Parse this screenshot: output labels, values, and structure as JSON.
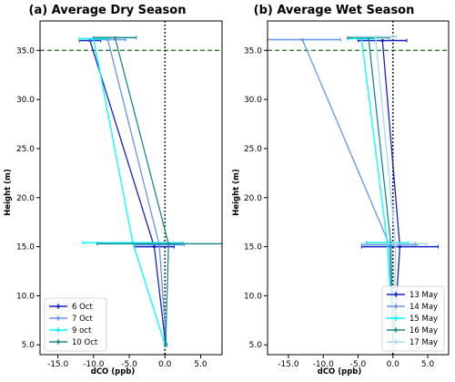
{
  "chart_data": [
    {
      "type": "line",
      "title": "(a)  Average Dry Season",
      "xlabel": "dCO (ppb)",
      "ylabel": "Height (m)",
      "xlim": [
        -17.5,
        8.0
      ],
      "ylim": [
        4.0,
        38.0
      ],
      "xticks": [
        -15,
        -10,
        -5,
        0,
        5
      ],
      "xtick_labels": [
        "-15.0",
        "-10.0",
        "-5.0",
        "0.0",
        "5.0"
      ],
      "yticks": [
        5,
        10,
        15,
        20,
        25,
        30,
        35
      ],
      "ytick_labels": [
        "5.0",
        "10.0",
        "15.0",
        "20.0",
        "25.0",
        "30.0",
        "35.0"
      ],
      "hline": {
        "y": 35,
        "color": "#2e7d32",
        "style": "dashed"
      },
      "vline": {
        "x": 0,
        "color": "#000000",
        "style": "dotted"
      },
      "legend_position": "lower-left",
      "series": [
        {
          "name": "6 Oct",
          "color": "#1420c8",
          "x": [
            0.1,
            -1.5,
            -10.5
          ],
          "y": [
            5,
            15,
            36
          ],
          "xerr": [
            0.1,
            2.8,
            1.5
          ]
        },
        {
          "name": "7 Oct",
          "color": "#6495ed",
          "x": [
            0.2,
            -0.8,
            -8.0
          ],
          "y": [
            5,
            15.2,
            36.1
          ],
          "xerr": [
            0.1,
            3.5,
            2.5
          ]
        },
        {
          "name": "9 oct",
          "color": "#00ffff",
          "x": [
            0.0,
            -4.5,
            -10.0
          ],
          "y": [
            5,
            15.4,
            36.2
          ],
          "xerr": [
            0.1,
            7.0,
            2.0
          ]
        },
        {
          "name": "10 Oct",
          "color": "#1a8a8a",
          "x": [
            0.1,
            0.5,
            -7.0
          ],
          "y": [
            5,
            15.3,
            36.3
          ],
          "xerr": [
            0.1,
            10.0,
            3.0
          ]
        }
      ]
    },
    {
      "type": "line",
      "title": "(b)  Average Wet Season",
      "xlabel": "dCO (ppb)",
      "ylabel": "Height (m)",
      "xlim": [
        -18.0,
        8.0
      ],
      "ylim": [
        4.0,
        38.0
      ],
      "xticks": [
        -15,
        -10,
        -5,
        0,
        5
      ],
      "xtick_labels": [
        "-15.0",
        "-10.0",
        "-5.0",
        "0.0",
        "5.0"
      ],
      "yticks": [
        5,
        10,
        15,
        20,
        25,
        30,
        35
      ],
      "ytick_labels": [
        "5.0",
        "10.0",
        "15.0",
        "20.0",
        "25.0",
        "30.0",
        "35.0"
      ],
      "hline": {
        "y": 35,
        "color": "#2e7d32",
        "style": "dashed"
      },
      "vline": {
        "x": 0,
        "color": "#000000",
        "style": "dotted"
      },
      "legend_position": "lower-right",
      "series": [
        {
          "name": "13 May",
          "color": "#1420c8",
          "x": [
            0.1,
            1.0,
            -1.5
          ],
          "y": [
            5,
            15,
            36
          ],
          "xerr": [
            0.1,
            5.5,
            3.5
          ]
        },
        {
          "name": "14 May",
          "color": "#6495ed",
          "x": [
            0.0,
            -0.5,
            -13.0
          ],
          "y": [
            5,
            15.2,
            36.1
          ],
          "xerr": [
            0.1,
            4.0,
            5.5
          ]
        },
        {
          "name": "15 May",
          "color": "#00ffff",
          "x": [
            0.1,
            -0.8,
            -4.5
          ],
          "y": [
            5,
            15.4,
            36.2
          ],
          "xerr": [
            0.1,
            3.0,
            2.0
          ]
        },
        {
          "name": "16 May",
          "color": "#1a8a8a",
          "x": [
            0.0,
            -0.3,
            -3.5
          ],
          "y": [
            5,
            15.3,
            36.3
          ],
          "xerr": [
            0.1,
            3.5,
            3.0
          ]
        },
        {
          "name": "17 May",
          "color": "#a8d8ea",
          "x": [
            0.1,
            0.4,
            -2.5
          ],
          "y": [
            5,
            15.3,
            36.4
          ],
          "xerr": [
            0.1,
            4.5,
            3.0
          ]
        }
      ]
    }
  ]
}
